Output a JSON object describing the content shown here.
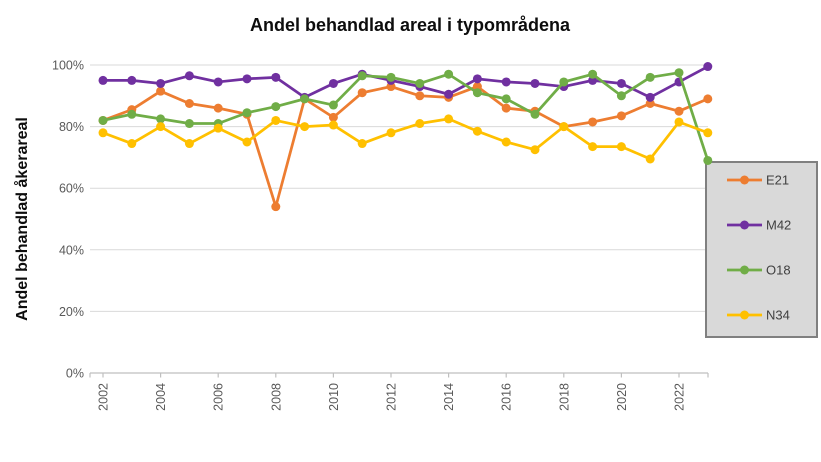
{
  "chart_data": {
    "type": "line",
    "title": "Andel behandlad areal i typområdena",
    "ylabel": "Andel behandlad åkerareal",
    "xlabel": "",
    "unit": "%",
    "x": [
      2002,
      2003,
      2004,
      2005,
      2006,
      2007,
      2008,
      2009,
      2010,
      2011,
      2012,
      2013,
      2014,
      2015,
      2016,
      2017,
      2018,
      2019,
      2020,
      2021,
      2022,
      2023
    ],
    "x_tick_years": [
      2002,
      2004,
      2006,
      2008,
      2010,
      2012,
      2014,
      2016,
      2018,
      2020,
      2022
    ],
    "x_tick_labels": [
      "2002",
      "2004",
      "2006",
      "2008",
      "2010",
      "2012",
      "2014",
      "2016",
      "2018",
      "2020",
      "2022"
    ],
    "y_tick_values": [
      0,
      20,
      40,
      60,
      80,
      100
    ],
    "y_tick_labels": [
      "0%",
      "20%",
      "40%",
      "60%",
      "80%",
      "100%"
    ],
    "ylim": [
      0,
      100
    ],
    "grid": true,
    "legend_position": "right",
    "series": [
      {
        "name": "E21",
        "color": "#ED7D31",
        "values": [
          82,
          85.5,
          91.5,
          87.5,
          86,
          84,
          54,
          89,
          83,
          91,
          93,
          90,
          89.5,
          93,
          86,
          85,
          80,
          81.5,
          83.5,
          87.5,
          85,
          89
        ]
      },
      {
        "name": "M42",
        "color": "#7030A0",
        "values": [
          95,
          95,
          94,
          96.5,
          94.5,
          95.5,
          96,
          89.5,
          94,
          97,
          95,
          93,
          90.5,
          95.5,
          94.5,
          94,
          93,
          95,
          94,
          89.5,
          94.5,
          99.5
        ]
      },
      {
        "name": "O18",
        "color": "#70AD47",
        "values": [
          82,
          84,
          82.5,
          81,
          81,
          84.5,
          86.5,
          89,
          87,
          96.5,
          96,
          94,
          97,
          91,
          89,
          84,
          94.5,
          97,
          90,
          96,
          97.5,
          69
        ]
      },
      {
        "name": "N34",
        "color": "#FFC000",
        "values": [
          78,
          74.5,
          80,
          74.5,
          79.5,
          75,
          82,
          80,
          80.5,
          74.5,
          78,
          81,
          82.5,
          78.5,
          75,
          72.5,
          80,
          73.5,
          73.5,
          69.5,
          81.5,
          78
        ]
      }
    ]
  },
  "legend": {
    "labels": [
      "E21",
      "M42",
      "O18",
      "N34"
    ]
  },
  "colors": {
    "background": "#FFFFFF",
    "grid": "#D9D9D9",
    "axis": "#BFBFBF",
    "tick_text": "#595959",
    "title_text": "#0D0D0D",
    "legend_fill": "#D9D9D9",
    "legend_border": "#808080",
    "legend_text": "#404040",
    "series_E21": "#ED7D31",
    "series_M42": "#7030A0",
    "series_O18": "#70AD47",
    "series_N34": "#FFC000"
  }
}
